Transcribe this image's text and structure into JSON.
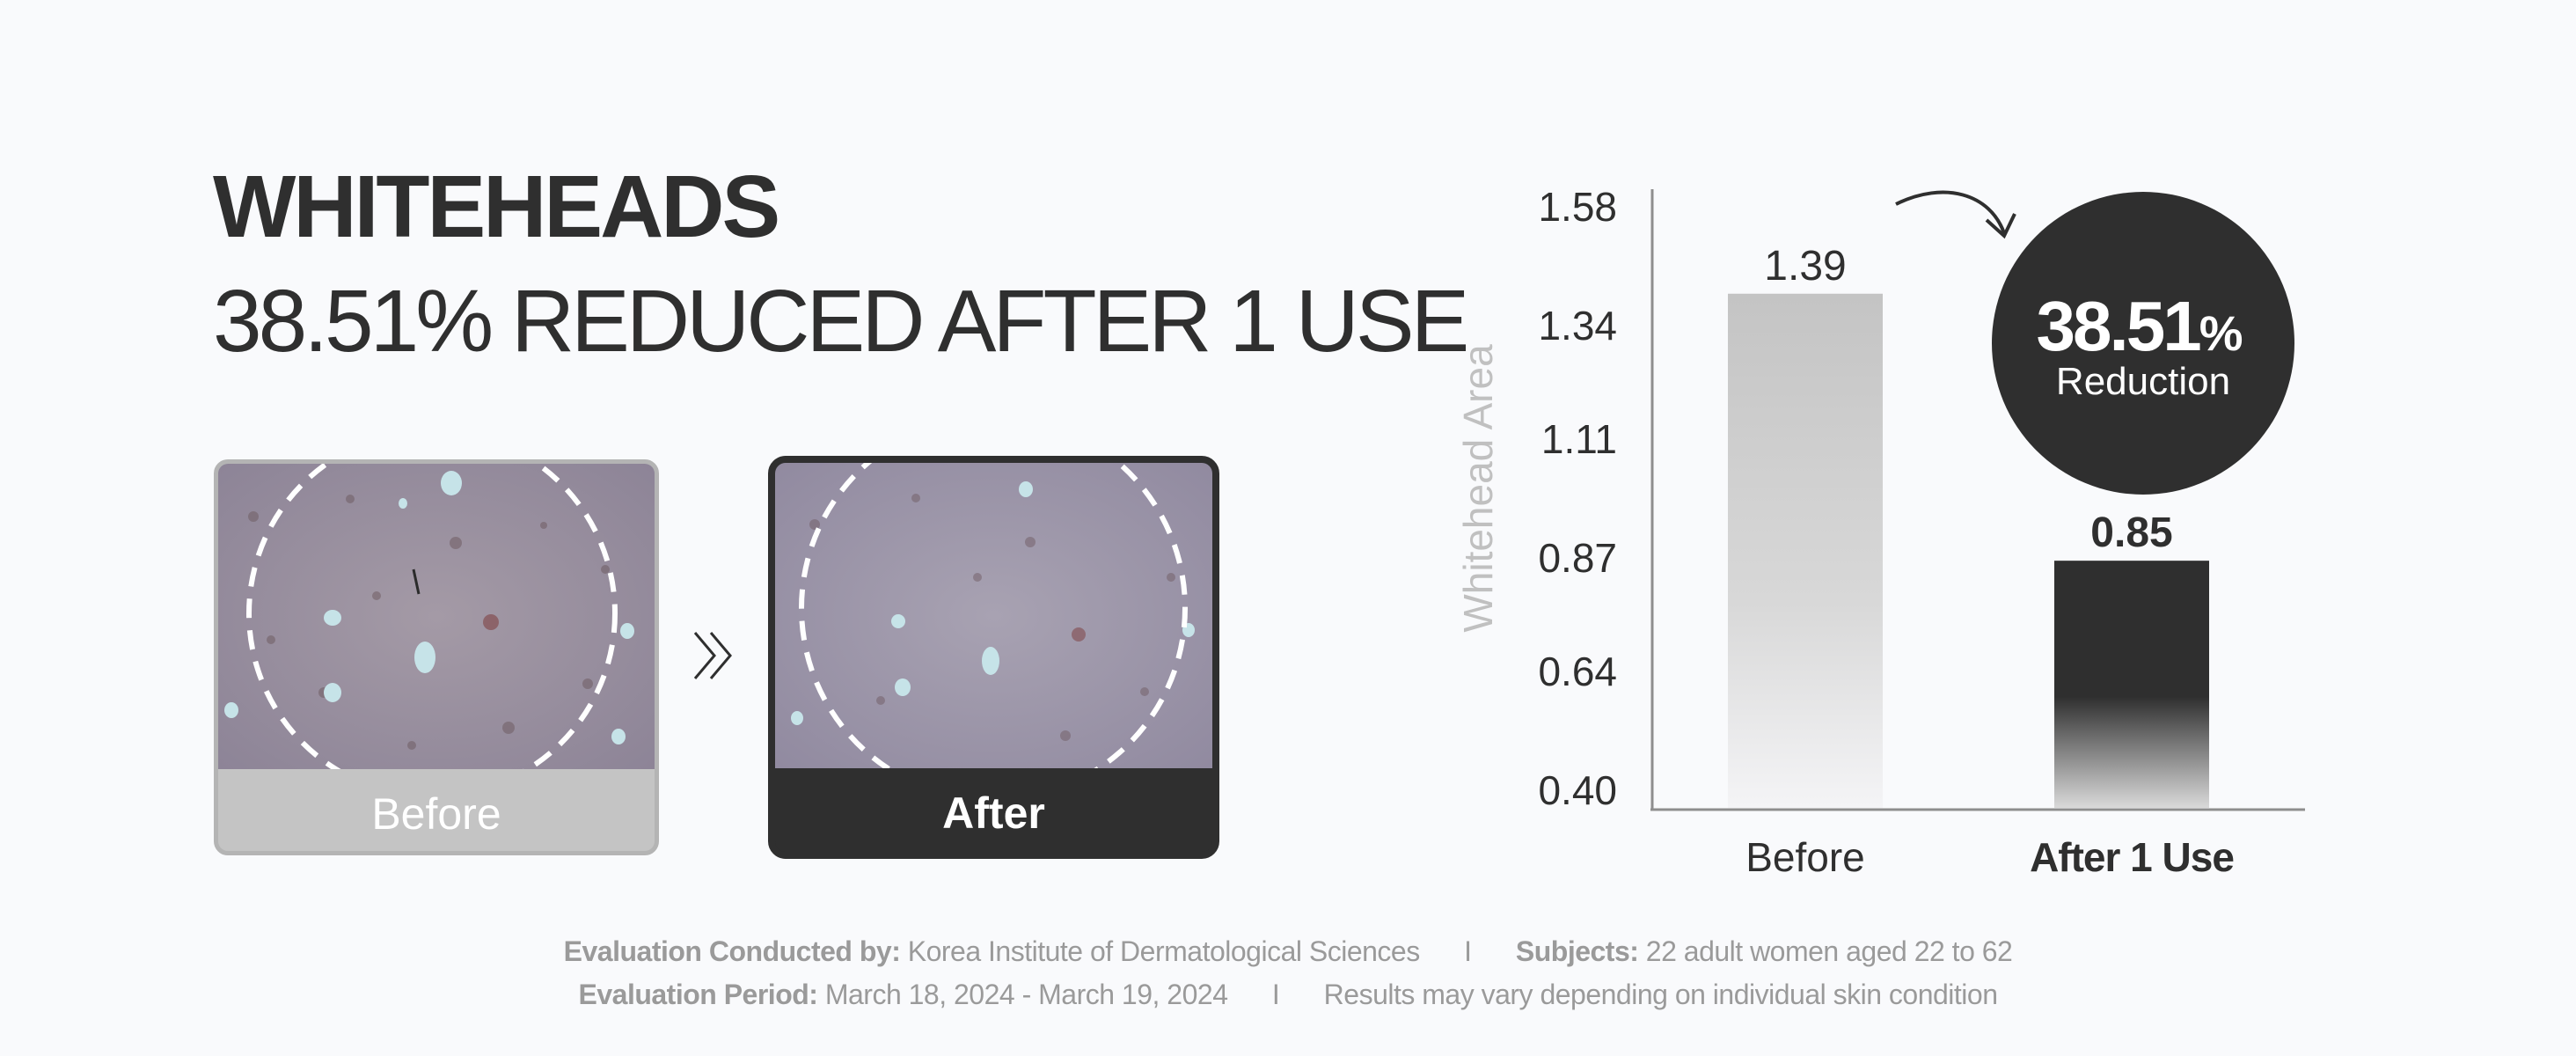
{
  "headline": {
    "title": "WHITEHEADS",
    "subtitle": "38.51% REDUCED AFTER 1 USE"
  },
  "photos": {
    "before_label": "Before",
    "after_label": "After",
    "arrow_icon": "double-chevron-right-icon"
  },
  "chart_data": {
    "type": "bar",
    "title": "",
    "ylabel": "Whitehead Area",
    "xlabel": "",
    "categories": [
      "Before",
      "After 1 Use"
    ],
    "values": [
      1.39,
      0.85
    ],
    "value_labels": [
      "1.39",
      "0.85"
    ],
    "yticks": [
      "0.40",
      "0.64",
      "0.87",
      "1.11",
      "1.34",
      "1.58"
    ],
    "ylim": [
      0.4,
      1.58
    ],
    "colors": {
      "before": "#c4c4c4",
      "after": "#2f2f2f"
    },
    "badge": {
      "value": "38.51",
      "unit": "%",
      "label": "Reduction"
    }
  },
  "footer": {
    "conducted_label": "Evaluation Conducted by:",
    "conducted_value": "Korea Institute of Dermatological Sciences",
    "separator": "I",
    "subjects_label": "Subjects:",
    "subjects_value": "22 adult women aged 22 to 62",
    "period_label": "Evaluation Period:",
    "period_value": "March 18, 2024 - March 19, 2024",
    "disclaimer": "Results may vary depending on individual skin condition"
  }
}
